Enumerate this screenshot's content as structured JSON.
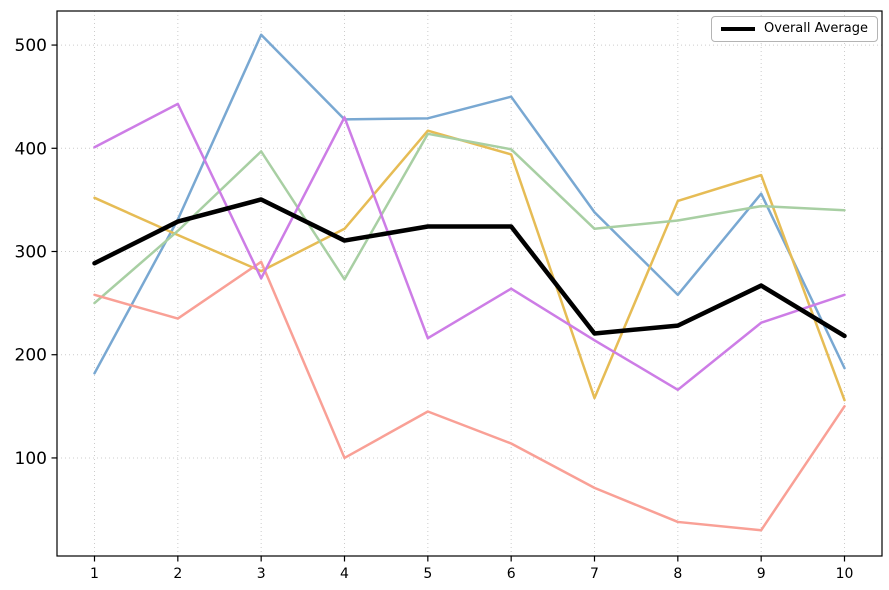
{
  "chart_data": {
    "type": "line",
    "title": "",
    "xlabel": "",
    "ylabel": "",
    "x": [
      1,
      2,
      3,
      4,
      5,
      6,
      7,
      8,
      9,
      10
    ],
    "x_ticks": [
      "1",
      "2",
      "3",
      "4",
      "5",
      "6",
      "7",
      "8",
      "9",
      "10"
    ],
    "y_ticks": [
      "100",
      "200",
      "300",
      "400",
      "500"
    ],
    "y_tick_values": [
      100,
      200,
      300,
      400,
      500
    ],
    "xlim": [
      0.55,
      10.45
    ],
    "ylim": [
      5,
      533
    ],
    "grid": true,
    "series": [
      {
        "name": "series-blue",
        "color": "#79a8d2",
        "width": 2.5,
        "values": [
          182,
          331,
          510,
          428,
          429,
          450,
          338,
          258,
          356,
          187
        ]
      },
      {
        "name": "series-orange",
        "color": "#e6bc55",
        "width": 2.5,
        "values": [
          352,
          316,
          281,
          322,
          417,
          394,
          158,
          349,
          374,
          156
        ]
      },
      {
        "name": "series-green",
        "color": "#a8cfa3",
        "width": 2.5,
        "values": [
          250,
          320,
          397,
          273,
          414,
          399,
          322,
          330,
          344,
          340
        ]
      },
      {
        "name": "series-salmon",
        "color": "#f9a096",
        "width": 2.5,
        "values": [
          258,
          235,
          290,
          100,
          145,
          114,
          71,
          38,
          30,
          150
        ]
      },
      {
        "name": "series-purple",
        "color": "#cd7de6",
        "width": 2.5,
        "values": [
          401,
          443,
          274,
          430,
          216,
          264,
          214,
          166,
          231,
          258
        ]
      },
      {
        "name": "overall-average",
        "color": "#000000",
        "width": 4.5,
        "values": [
          288.6,
          329.0,
          350.4,
          310.6,
          324.2,
          324.2,
          220.6,
          228.2,
          267.0,
          218.2
        ]
      }
    ],
    "legend": {
      "position": "upper-right",
      "entries": [
        {
          "label": "Overall Average",
          "color": "#000000"
        }
      ]
    },
    "colors": {
      "grid": "#cccccc",
      "spine": "#000000",
      "tick_label": "#000000",
      "background": "#ffffff"
    }
  }
}
